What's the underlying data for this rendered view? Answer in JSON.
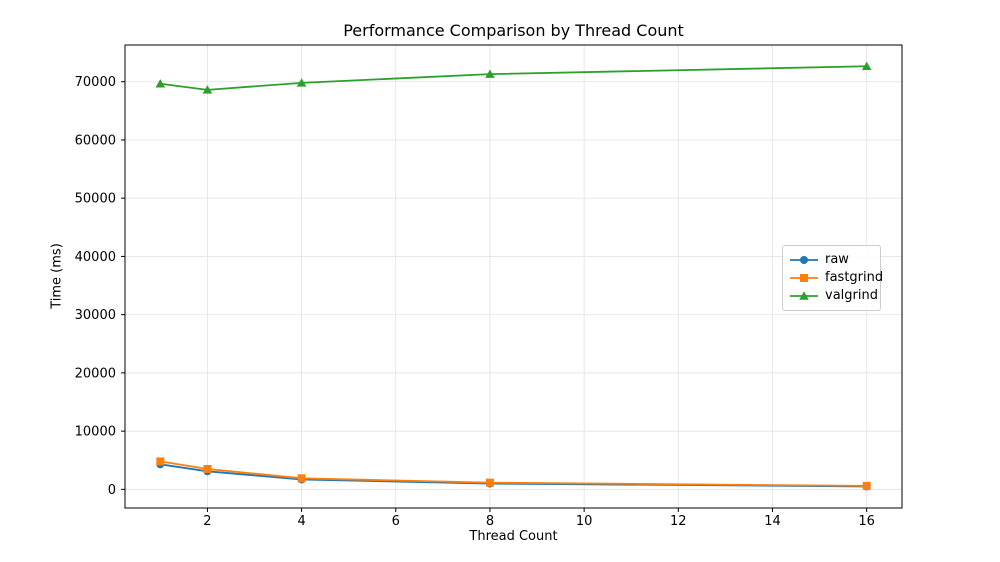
{
  "chart_data": {
    "type": "line",
    "title": "Performance Comparison by Thread Count",
    "xlabel": "Thread Count",
    "ylabel": "Time (ms)",
    "x": [
      1,
      2,
      4,
      8,
      16
    ],
    "series": [
      {
        "name": "raw",
        "color": "#1f77b4",
        "marker": "circle",
        "values": [
          4300,
          3100,
          1700,
          1000,
          500
        ]
      },
      {
        "name": "fastgrind",
        "color": "#ff7f0e",
        "marker": "square",
        "values": [
          4800,
          3500,
          1900,
          1150,
          600
        ]
      },
      {
        "name": "valgrind",
        "color": "#2ca02c",
        "marker": "triangle-up",
        "values": [
          69650,
          68600,
          69800,
          71300,
          72650
        ]
      }
    ],
    "xticks": [
      2,
      4,
      6,
      8,
      10,
      12,
      14,
      16
    ],
    "yticks": [
      0,
      10000,
      20000,
      30000,
      40000,
      50000,
      60000,
      70000
    ],
    "xlim": [
      0.25,
      16.75
    ],
    "ylim": [
      -3200,
      76300
    ],
    "grid": true,
    "grid_color": "#e5e5e5",
    "spine_color": "#000000",
    "background_color": "#ffffff",
    "legend_position": "center right"
  }
}
